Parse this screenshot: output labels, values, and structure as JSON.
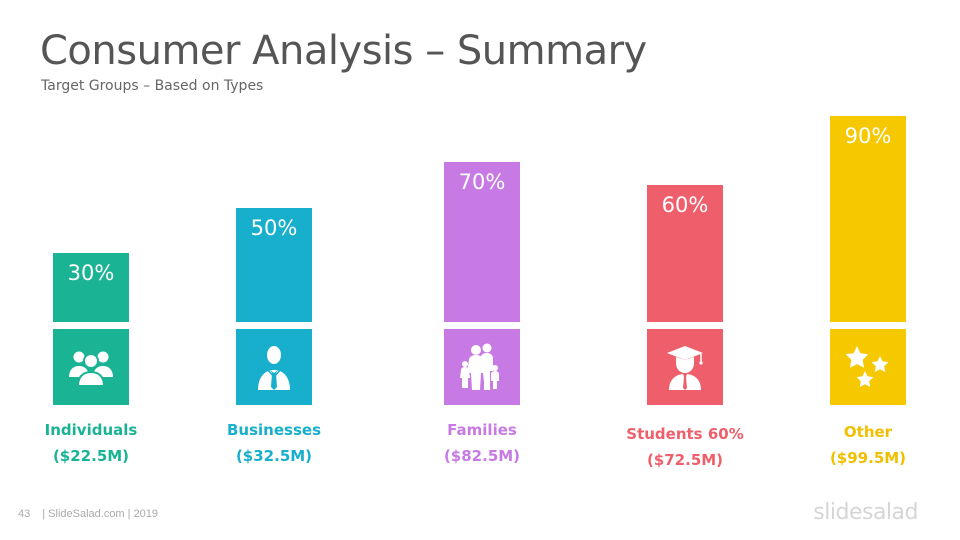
{
  "slide": {
    "title": "Consumer Analysis – Summary",
    "subtitle": "Target Groups – Based on Types",
    "footer_page": "43",
    "footer_text": "| SlideSalad.com | 2019",
    "brand": "slidesalad"
  },
  "chart_data": {
    "type": "bar",
    "categories": [
      "Individuals",
      "Businesses",
      "Families",
      "Students 60%",
      "Other"
    ],
    "values": [
      30,
      50,
      70,
      60,
      90
    ],
    "value_labels": [
      "30%",
      "50%",
      "70%",
      "60%",
      "90%"
    ],
    "amounts": [
      "($22.5M)",
      "($32.5M)",
      "($82.5M)",
      "($72.5M)",
      "($99.5M)"
    ],
    "colors": [
      "#1ab394",
      "#17afcc",
      "#c77ae3",
      "#ef5f6b",
      "#f5c800"
    ],
    "icons": [
      "people-group-icon",
      "businessman-icon",
      "family-icon",
      "graduate-icon",
      "stars-icon"
    ],
    "ylim": [
      0,
      100
    ],
    "title": "",
    "xlabel": "",
    "ylabel": ""
  }
}
